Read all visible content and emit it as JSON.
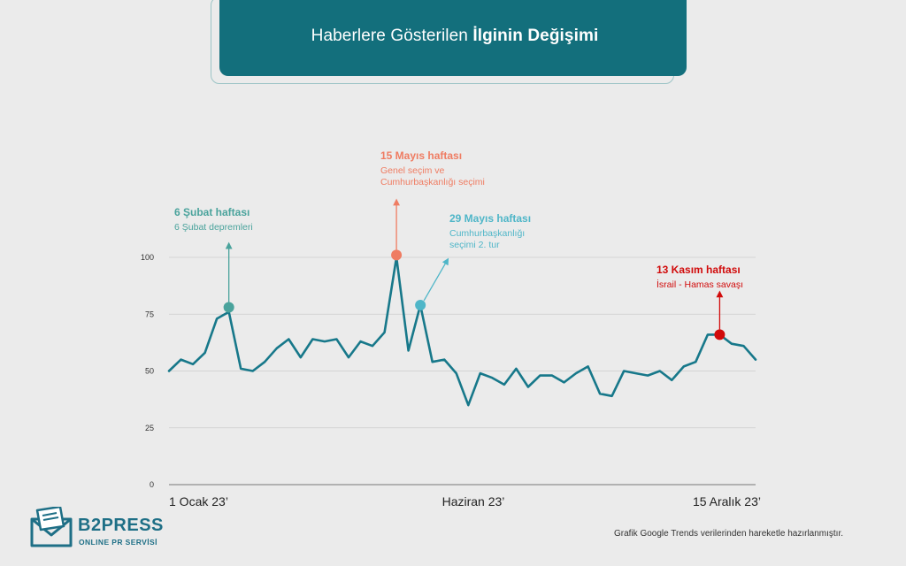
{
  "title": {
    "regular": "Haberlere Gösterilen",
    "bold": "İlginin Değişimi"
  },
  "colors": {
    "background": "#ebebeb",
    "title_box": "#136f7c",
    "line": "#17788a",
    "grid": "#cccccc",
    "feb": "#4aa39c",
    "may15": "#ef7c62",
    "may29": "#4fb6c8",
    "nov": "#d10b0b"
  },
  "chart_data": {
    "type": "line",
    "title": "Haberlere Gösterilen İlginin Değişimi",
    "ylim": [
      0,
      100
    ],
    "yticks": [
      0,
      25,
      50,
      75,
      100
    ],
    "x_tick_labels": [
      "1 Ocak 23’",
      "Haziran 23’",
      "15 Aralık 23’"
    ],
    "grid": true,
    "values": [
      50,
      55,
      53,
      58,
      73,
      76,
      51,
      50,
      54,
      60,
      64,
      56,
      64,
      63,
      64,
      56,
      63,
      61,
      67,
      100,
      59,
      79,
      54,
      55,
      49,
      35,
      49,
      47,
      44,
      51,
      43,
      48,
      48,
      45,
      49,
      52,
      40,
      39,
      50,
      49,
      48,
      50,
      46,
      52,
      54,
      66,
      66,
      62,
      61,
      55
    ],
    "annotations": [
      {
        "index": 5,
        "value": 78,
        "label": "6 Şubat haftası",
        "detail": [
          "6 Şubat depremleri"
        ],
        "color": "#4aa39c"
      },
      {
        "index": 19,
        "value": 101,
        "label": "15 Mayıs haftası",
        "detail": [
          "Genel seçim ve",
          "Cumhurbaşkanlığı seçimi"
        ],
        "color": "#ef7c62"
      },
      {
        "index": 21,
        "value": 79,
        "label": "29 Mayıs haftası",
        "detail": [
          "Cumhurbaşkanlığı",
          "seçimi 2. tur"
        ],
        "color": "#4fb6c8"
      },
      {
        "index": 46,
        "value": 66,
        "label": "13 Kasım haftası",
        "detail": [
          "İsrail - Hamas savaşı"
        ],
        "color": "#d10b0b"
      }
    ]
  },
  "footnote": "Grafik Google Trends verilerinden hareketle hazırlanmıştır.",
  "logo": {
    "name": "B2PRESS",
    "tagline": "ONLINE PR SERVİSİ"
  }
}
